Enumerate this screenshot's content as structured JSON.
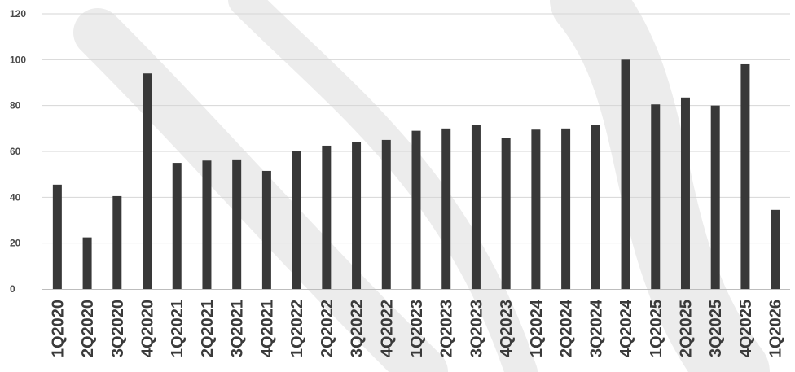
{
  "chart_data": {
    "type": "bar",
    "title": "",
    "xlabel": "",
    "ylabel": "",
    "categories": [
      "1Q2020",
      "2Q2020",
      "3Q2020",
      "4Q2020",
      "1Q2021",
      "2Q2021",
      "3Q2021",
      "4Q2021",
      "1Q2022",
      "2Q2022",
      "3Q2022",
      "4Q2022",
      "1Q2023",
      "2Q2023",
      "3Q2023",
      "4Q2023",
      "1Q2024",
      "2Q2024",
      "3Q2024",
      "4Q2024",
      "1Q2025",
      "2Q2025",
      "3Q2025",
      "4Q2025",
      "1Q2026"
    ],
    "values": [
      45.5,
      22.5,
      40.5,
      94,
      55,
      56,
      56.5,
      51.5,
      60,
      62.5,
      64,
      65,
      69,
      70,
      71.5,
      66,
      69.5,
      70,
      71.5,
      100,
      80.5,
      83.5,
      80,
      98,
      34.5
    ],
    "ylim": [
      0,
      120
    ],
    "yticks": [
      0,
      20,
      40,
      60,
      80,
      100,
      120
    ],
    "grid": true,
    "legend": "none",
    "colors": {
      "bar": "#383838",
      "grid": "#d6d6d6",
      "axis": "#bdbdbd",
      "watermark": "#ececec"
    }
  }
}
